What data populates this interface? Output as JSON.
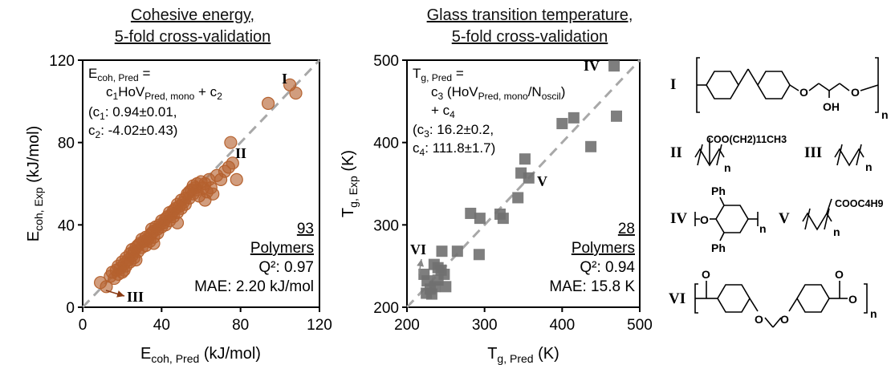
{
  "chart_data": [
    {
      "type": "scatter",
      "title_lines": [
        "Cohesive energy,",
        "5-fold cross-validation"
      ],
      "xlabel": {
        "main": "E",
        "sub": "coh, Pred",
        "unit": " (kJ/mol)"
      },
      "ylabel": {
        "main": "E",
        "sub": "coh, Exp",
        "unit": " (kJ/mol)"
      },
      "xlim": [
        0,
        120
      ],
      "ylim": [
        0,
        120
      ],
      "xticks": [
        0,
        40,
        80,
        120
      ],
      "yticks": [
        0,
        40,
        80,
        120
      ],
      "marker_color": "#b5612e",
      "equation": {
        "line1_main": "E",
        "line1_sub": "coh, Pred",
        "line1_tail": " =",
        "line2_a": "c",
        "line2_a_sub": "1",
        "line2_b": "HoV",
        "line2_b_sub": "Pred, mono",
        "line2_c": " + c",
        "line2_c_sub": "2",
        "line3_a": "(c",
        "line3_a_sub": "1",
        "line3_b": ": 0.94±0.01,",
        "line4_a": "c",
        "line4_a_sub": "2",
        "line4_b": ": -4.02±0.43)"
      },
      "stats": {
        "count": "93",
        "count_label": "Polymers",
        "q2": "Q²: 0.97",
        "mae": "MAE: 2.20 kJ/mol"
      },
      "annotations": [
        {
          "label": "I",
          "x": 104,
          "y": 112
        },
        {
          "label": "II",
          "x": 82,
          "y": 74
        },
        {
          "label": "III",
          "x": 24,
          "y": 4
        }
      ],
      "points": [
        [
          9,
          12
        ],
        [
          12,
          10
        ],
        [
          14,
          15
        ],
        [
          15,
          17
        ],
        [
          16,
          14
        ],
        [
          17,
          18
        ],
        [
          18,
          16
        ],
        [
          18,
          20
        ],
        [
          19,
          19
        ],
        [
          20,
          17
        ],
        [
          20,
          22
        ],
        [
          21,
          21
        ],
        [
          22,
          20
        ],
        [
          22,
          24
        ],
        [
          23,
          23
        ],
        [
          24,
          22
        ],
        [
          24,
          26
        ],
        [
          25,
          25
        ],
        [
          25,
          28
        ],
        [
          26,
          27
        ],
        [
          26,
          24
        ],
        [
          27,
          29
        ],
        [
          28,
          30
        ],
        [
          28,
          27
        ],
        [
          29,
          31
        ],
        [
          30,
          29
        ],
        [
          30,
          33
        ],
        [
          31,
          32
        ],
        [
          32,
          30
        ],
        [
          32,
          34
        ],
        [
          33,
          33
        ],
        [
          34,
          35
        ],
        [
          34,
          32
        ],
        [
          35,
          36
        ],
        [
          35,
          38
        ],
        [
          36,
          37
        ],
        [
          36,
          34
        ],
        [
          37,
          39
        ],
        [
          38,
          38
        ],
        [
          38,
          36
        ],
        [
          39,
          40
        ],
        [
          40,
          42
        ],
        [
          40,
          39
        ],
        [
          41,
          41
        ],
        [
          42,
          43
        ],
        [
          42,
          40
        ],
        [
          43,
          44
        ],
        [
          44,
          42
        ],
        [
          44,
          46
        ],
        [
          45,
          45
        ],
        [
          46,
          47
        ],
        [
          46,
          44
        ],
        [
          47,
          48
        ],
        [
          48,
          46
        ],
        [
          48,
          50
        ],
        [
          49,
          49
        ],
        [
          50,
          52
        ],
        [
          50,
          48
        ],
        [
          51,
          51
        ],
        [
          52,
          53
        ],
        [
          52,
          50
        ],
        [
          53,
          55
        ],
        [
          54,
          56
        ],
        [
          54,
          53
        ],
        [
          55,
          57
        ],
        [
          56,
          55
        ],
        [
          56,
          59
        ],
        [
          57,
          58
        ],
        [
          58,
          60
        ],
        [
          58,
          57
        ],
        [
          59,
          54
        ],
        [
          60,
          61
        ],
        [
          61,
          58
        ],
        [
          62,
          60
        ],
        [
          63,
          56
        ],
        [
          64,
          62
        ],
        [
          65,
          58
        ],
        [
          66,
          55
        ],
        [
          68,
          64
        ],
        [
          70,
          62
        ],
        [
          72,
          66
        ],
        [
          74,
          68
        ],
        [
          76,
          70
        ],
        [
          78,
          62
        ],
        [
          75,
          80
        ],
        [
          62,
          52
        ],
        [
          48,
          41
        ],
        [
          36,
          31
        ],
        [
          27,
          23
        ],
        [
          21,
          18
        ],
        [
          94,
          99
        ],
        [
          105,
          108
        ],
        [
          108,
          104
        ]
      ]
    },
    {
      "type": "scatter",
      "title_lines": [
        "Glass transition temperature,",
        "5-fold cross-validation"
      ],
      "xlabel": {
        "main": "T",
        "sub": "g, Pred",
        "unit": " (K)"
      },
      "ylabel": {
        "main": "T",
        "sub": "g, Exp",
        "unit": " (K)"
      },
      "xlim": [
        200,
        500
      ],
      "ylim": [
        200,
        500
      ],
      "xticks": [
        200,
        300,
        400,
        500
      ],
      "yticks": [
        200,
        300,
        400,
        500
      ],
      "marker_color": "#707070",
      "equation": {
        "line1_main": "T",
        "line1_sub": "g, Pred",
        "line1_tail": " =",
        "line2_a": "c",
        "line2_a_sub": "3",
        "line2_b": " (HoV",
        "line2_b_sub": "Pred, mono",
        "line2_c": "/N",
        "line2_c_sub": "oscil",
        "line2_d": ")",
        "line3": "+ c",
        "line3_sub": "4",
        "line4_a": "(c",
        "line4_a_sub": "3",
        "line4_b": ": 16.2±0.2,",
        "line5_a": "c",
        "line5_a_sub": "4",
        "line5_b": ": 111.8±1.7)"
      },
      "stats": {
        "count": "28",
        "count_label": "Polymers",
        "q2": "Q²: 0.94",
        "mae": "MAE: 15.8 K"
      },
      "annotations": [
        {
          "label": "IV",
          "x": 430,
          "y": 490
        },
        {
          "label": "V",
          "x": 368,
          "y": 358
        },
        {
          "label": "VI",
          "x": 207,
          "y": 272
        }
      ],
      "points": [
        [
          467,
          493
        ],
        [
          470,
          432
        ],
        [
          415,
          430
        ],
        [
          400,
          423
        ],
        [
          437,
          395
        ],
        [
          352,
          380
        ],
        [
          347,
          363
        ],
        [
          357,
          357
        ],
        [
          343,
          333
        ],
        [
          320,
          313
        ],
        [
          324,
          308
        ],
        [
          282,
          314
        ],
        [
          294,
          308
        ],
        [
          293,
          264
        ],
        [
          265,
          268
        ],
        [
          245,
          268
        ],
        [
          244,
          245
        ],
        [
          248,
          240
        ],
        [
          250,
          225
        ],
        [
          235,
          252
        ],
        [
          240,
          248
        ],
        [
          226,
          232
        ],
        [
          230,
          222
        ],
        [
          225,
          217
        ],
        [
          232,
          216
        ],
        [
          236,
          225
        ],
        [
          222,
          240
        ],
        [
          240,
          233
        ]
      ]
    }
  ],
  "structures": {
    "I": "I",
    "II": "II",
    "III": "III",
    "IV": "IV",
    "V": "V",
    "VI": "VI",
    "II_sidechain": "COO(CH2)11CH3",
    "IV_sub": "Ph",
    "V_sidechain": "COOC4H9",
    "OH": "OH",
    "O": "O",
    "n": "n"
  }
}
